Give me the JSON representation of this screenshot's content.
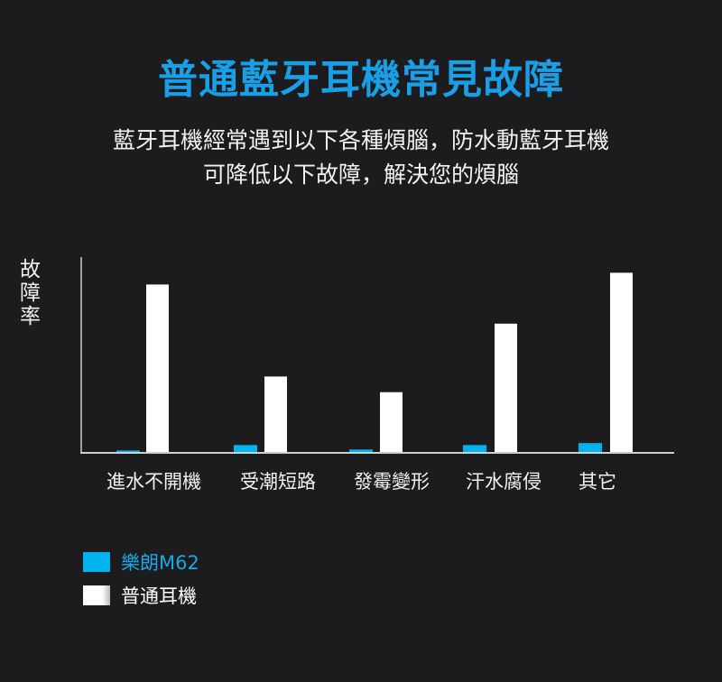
{
  "title": "普通藍牙耳機常見故障",
  "subtitle_lines": [
    "藍牙耳機經常遇到以下各種煩腦，防水動藍牙耳機",
    "可降低以下故障，解決您的煩腦"
  ],
  "chart_data": {
    "type": "bar",
    "ylabel": "故障率",
    "categories": [
      "進水不開機",
      "受潮短路",
      "發霉變形",
      "汗水腐侵",
      "其它"
    ],
    "series": [
      {
        "name": "樂朗M62",
        "color": "#00b4ef",
        "values": [
          1.2,
          4,
          1.7,
          4,
          5
        ]
      },
      {
        "name": "普通耳機",
        "color": "#ffffff",
        "values": [
          86,
          39,
          31,
          66,
          92
        ]
      }
    ],
    "ylim": [
      0,
      100
    ],
    "grid": false,
    "legend": "bottom-left"
  }
}
